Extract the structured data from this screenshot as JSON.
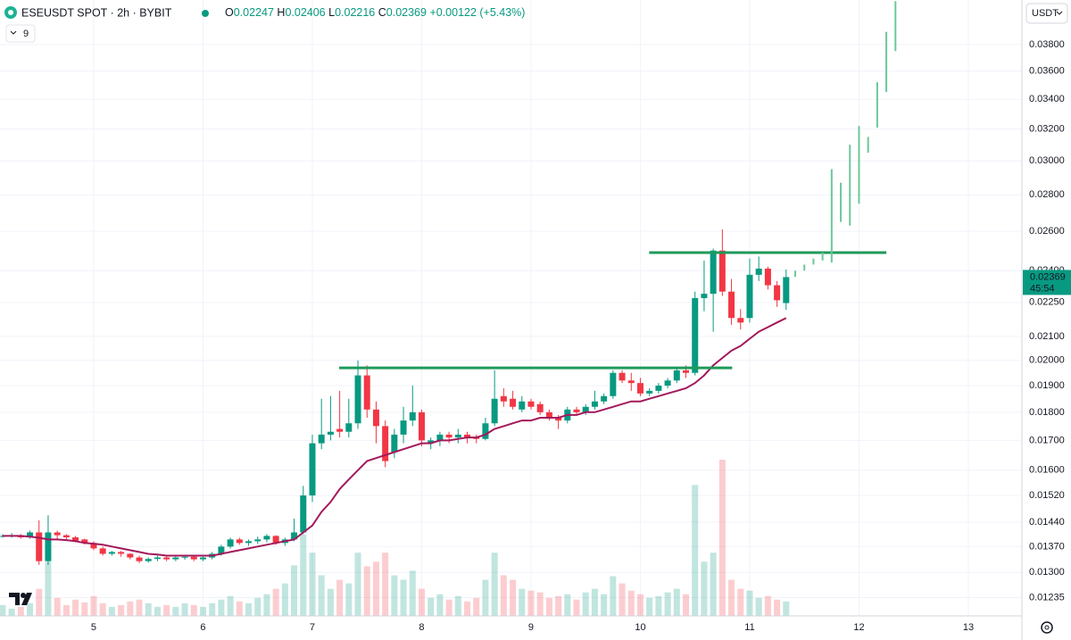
{
  "chart_data": {
    "type": "candlestick",
    "title": "ESEUSDT SPOT · 2h · BYBIT",
    "ohlc_letters": [
      "O",
      "H",
      "L",
      "C"
    ],
    "change": "+0.00122 (+5.43%)",
    "indicator": "9",
    "currency": "USDT",
    "countdown": "45:54",
    "log_scale": true,
    "grid": true,
    "up_color": "#089981",
    "down_color": "#f23645",
    "ma_color": "#a3195b",
    "level_color": "#1f9a5b",
    "projection_color": "#6cc79a",
    "xlim": [
      4.143,
      13.49
    ],
    "xticks": [
      5,
      6,
      7,
      8,
      9,
      10,
      11,
      12,
      13
    ],
    "ylim": [
      0.0119,
      0.0416
    ],
    "yticks": [
      {
        "value": 0.038,
        "label": "0.03800"
      },
      {
        "value": 0.036,
        "label": "0.03600"
      },
      {
        "value": 0.034,
        "label": "0.03400"
      },
      {
        "value": 0.032,
        "label": "0.03200"
      },
      {
        "value": 0.03,
        "label": "0.03000"
      },
      {
        "value": 0.028,
        "label": "0.02800"
      },
      {
        "value": 0.026,
        "label": "0.02600"
      },
      {
        "value": 0.024,
        "label": "0.02400"
      },
      {
        "value": 0.0225,
        "label": "0.02250"
      },
      {
        "value": 0.021,
        "label": "0.02100"
      },
      {
        "value": 0.02,
        "label": "0.02000"
      },
      {
        "value": 0.019,
        "label": "0.01900"
      },
      {
        "value": 0.018,
        "label": "0.01800"
      },
      {
        "value": 0.017,
        "label": "0.01700"
      },
      {
        "value": 0.016,
        "label": "0.01600"
      },
      {
        "value": 0.0152,
        "label": "0.01520"
      },
      {
        "value": 0.0144,
        "label": "0.01440"
      },
      {
        "value": 0.0137,
        "label": "0.01370"
      },
      {
        "value": 0.013,
        "label": "0.01300"
      },
      {
        "value": 0.01235,
        "label": "0.01235"
      }
    ],
    "x": [
      4.1667,
      4.25,
      4.3333,
      4.4167,
      4.5,
      4.5833,
      4.6667,
      4.75,
      4.8333,
      4.9167,
      5,
      5.0833,
      5.1667,
      5.25,
      5.3333,
      5.4167,
      5.5,
      5.5833,
      5.6667,
      5.75,
      5.8333,
      5.9167,
      6,
      6.0833,
      6.1667,
      6.25,
      6.3333,
      6.4167,
      6.5,
      6.5833,
      6.6667,
      6.75,
      6.8333,
      6.9167,
      7,
      7.0833,
      7.1667,
      7.25,
      7.3333,
      7.4167,
      7.5,
      7.5833,
      7.6667,
      7.75,
      7.8333,
      7.9167,
      8,
      8.0833,
      8.1667,
      8.25,
      8.3333,
      8.4167,
      8.5,
      8.5833,
      8.6667,
      8.75,
      8.8333,
      8.9167,
      9,
      9.0833,
      9.1667,
      9.25,
      9.3333,
      9.4167,
      9.5,
      9.5833,
      9.6667,
      9.75,
      9.8333,
      9.9167,
      10,
      10.0833,
      10.1667,
      10.25,
      10.3333,
      10.4167,
      10.5,
      10.5833,
      10.6667,
      10.75,
      10.8333,
      10.9167,
      11,
      11.0833,
      11.1667,
      11.25,
      11.3333
    ],
    "ohlc": [
      [
        0.014,
        0.01405,
        0.01395,
        0.014
      ],
      [
        0.014,
        0.01408,
        0.01395,
        0.01402
      ],
      [
        0.01402,
        0.01405,
        0.01392,
        0.01396
      ],
      [
        0.01396,
        0.01415,
        0.01392,
        0.0141
      ],
      [
        0.0141,
        0.01445,
        0.0132,
        0.0133
      ],
      [
        0.0133,
        0.0146,
        0.0132,
        0.0141
      ],
      [
        0.0141,
        0.01415,
        0.0139,
        0.01402
      ],
      [
        0.01402,
        0.01405,
        0.0139,
        0.01396
      ],
      [
        0.01396,
        0.014,
        0.01382,
        0.01386
      ],
      [
        0.0139,
        0.01392,
        0.01376,
        0.0138
      ],
      [
        0.0138,
        0.01385,
        0.0136,
        0.01365
      ],
      [
        0.01365,
        0.0137,
        0.01345,
        0.0135
      ],
      [
        0.0135,
        0.01358,
        0.01345,
        0.01355
      ],
      [
        0.01355,
        0.01358,
        0.01342,
        0.0135
      ],
      [
        0.0135,
        0.01352,
        0.01335,
        0.0134
      ],
      [
        0.0134,
        0.01345,
        0.01325,
        0.0133
      ],
      [
        0.0133,
        0.0134,
        0.01326,
        0.01336
      ],
      [
        0.01336,
        0.01345,
        0.0133,
        0.0134
      ],
      [
        0.0134,
        0.01345,
        0.0133,
        0.01335
      ],
      [
        0.01335,
        0.01345,
        0.0133,
        0.0134
      ],
      [
        0.0134,
        0.01346,
        0.01334,
        0.01342
      ],
      [
        0.01342,
        0.01346,
        0.0133,
        0.01335
      ],
      [
        0.01335,
        0.01345,
        0.0133,
        0.0134
      ],
      [
        0.0134,
        0.01355,
        0.01335,
        0.0135
      ],
      [
        0.0135,
        0.01375,
        0.01345,
        0.0137
      ],
      [
        0.0137,
        0.01395,
        0.01365,
        0.0139
      ],
      [
        0.0139,
        0.01395,
        0.01375,
        0.0138
      ],
      [
        0.0138,
        0.0139,
        0.01372,
        0.01385
      ],
      [
        0.01385,
        0.01398,
        0.01378,
        0.0139
      ],
      [
        0.0139,
        0.01405,
        0.01382,
        0.014
      ],
      [
        0.014,
        0.01402,
        0.01375,
        0.0138
      ],
      [
        0.0138,
        0.01395,
        0.01372,
        0.0139
      ],
      [
        0.0139,
        0.0145,
        0.01385,
        0.0141
      ],
      [
        0.0141,
        0.0155,
        0.01405,
        0.0152
      ],
      [
        0.0152,
        0.0172,
        0.015,
        0.0169
      ],
      [
        0.0169,
        0.0185,
        0.0167,
        0.0172
      ],
      [
        0.0172,
        0.0186,
        0.017,
        0.0173
      ],
      [
        0.0174,
        0.0188,
        0.0171,
        0.0173
      ],
      [
        0.0173,
        0.0185,
        0.0171,
        0.0176
      ],
      [
        0.0176,
        0.02,
        0.0174,
        0.0194
      ],
      [
        0.0194,
        0.0198,
        0.0178,
        0.0181
      ],
      [
        0.0181,
        0.0184,
        0.0169,
        0.0175
      ],
      [
        0.0175,
        0.0177,
        0.0161,
        0.0163
      ],
      [
        0.0166,
        0.0174,
        0.0164,
        0.0172
      ],
      [
        0.0172,
        0.0182,
        0.0169,
        0.0177
      ],
      [
        0.0177,
        0.019,
        0.0175,
        0.018
      ],
      [
        0.018,
        0.0181,
        0.0168,
        0.017
      ],
      [
        0.0169,
        0.0171,
        0.0167,
        0.017
      ],
      [
        0.017,
        0.0173,
        0.0168,
        0.0172
      ],
      [
        0.0172,
        0.0173,
        0.0169,
        0.0171
      ],
      [
        0.0171,
        0.0174,
        0.0169,
        0.0172
      ],
      [
        0.0172,
        0.0173,
        0.0169,
        0.0171
      ],
      [
        0.0171,
        0.0172,
        0.0169,
        0.01705
      ],
      [
        0.01705,
        0.0178,
        0.017,
        0.0176
      ],
      [
        0.0176,
        0.0196,
        0.0175,
        0.0185
      ],
      [
        0.0186,
        0.0189,
        0.0182,
        0.0184
      ],
      [
        0.0185,
        0.0188,
        0.0181,
        0.0182
      ],
      [
        0.0181,
        0.0186,
        0.018,
        0.0184
      ],
      [
        0.0184,
        0.0185,
        0.0181,
        0.0182
      ],
      [
        0.0183,
        0.0184,
        0.0179,
        0.018
      ],
      [
        0.018,
        0.0181,
        0.0177,
        0.0178
      ],
      [
        0.0178,
        0.0179,
        0.0174,
        0.0177
      ],
      [
        0.0177,
        0.0182,
        0.0176,
        0.0181
      ],
      [
        0.0181,
        0.0182,
        0.0179,
        0.018
      ],
      [
        0.018,
        0.0183,
        0.0179,
        0.0182
      ],
      [
        0.0182,
        0.0188,
        0.0181,
        0.0184
      ],
      [
        0.0184,
        0.0187,
        0.0183,
        0.0186
      ],
      [
        0.0186,
        0.0196,
        0.0185,
        0.0195
      ],
      [
        0.0195,
        0.0196,
        0.0191,
        0.0192
      ],
      [
        0.0192,
        0.0195,
        0.0188,
        0.0191
      ],
      [
        0.0191,
        0.0193,
        0.0186,
        0.0187
      ],
      [
        0.0187,
        0.0189,
        0.0186,
        0.0188
      ],
      [
        0.0188,
        0.0191,
        0.0187,
        0.019
      ],
      [
        0.019,
        0.0193,
        0.0189,
        0.0192
      ],
      [
        0.0192,
        0.0197,
        0.0191,
        0.0196
      ],
      [
        0.0196,
        0.0198,
        0.0193,
        0.0195
      ],
      [
        0.0195,
        0.023,
        0.0194,
        0.0227
      ],
      [
        0.0227,
        0.0245,
        0.0221,
        0.0229
      ],
      [
        0.0229,
        0.0251,
        0.0212,
        0.025
      ],
      [
        0.025,
        0.0261,
        0.0228,
        0.023
      ],
      [
        0.023,
        0.0236,
        0.0215,
        0.0218
      ],
      [
        0.0218,
        0.0222,
        0.0213,
        0.0216
      ],
      [
        0.0218,
        0.0246,
        0.0216,
        0.0238
      ],
      [
        0.0238,
        0.0247,
        0.0235,
        0.0241
      ],
      [
        0.0241,
        0.0242,
        0.0231,
        0.0233
      ],
      [
        0.0233,
        0.0235,
        0.0223,
        0.0226
      ],
      [
        0.02247,
        0.02406,
        0.02216,
        0.02369
      ]
    ],
    "ma": [
      0.014,
      0.014,
      0.014,
      0.01398,
      0.01395,
      0.0139,
      0.0139,
      0.01388,
      0.01385,
      0.0138,
      0.01378,
      0.01375,
      0.0137,
      0.01365,
      0.0136,
      0.01355,
      0.0135,
      0.01348,
      0.01345,
      0.01345,
      0.01345,
      0.01345,
      0.01345,
      0.01345,
      0.0135,
      0.01355,
      0.0136,
      0.01365,
      0.0137,
      0.01375,
      0.0138,
      0.01385,
      0.0139,
      0.0141,
      0.0143,
      0.0147,
      0.015,
      0.0154,
      0.0157,
      0.016,
      0.0163,
      0.0164,
      0.0165,
      0.0166,
      0.0167,
      0.0168,
      0.0169,
      0.0169,
      0.017,
      0.017,
      0.01705,
      0.0171,
      0.0171,
      0.0172,
      0.0174,
      0.0175,
      0.0176,
      0.0177,
      0.0177,
      0.0178,
      0.0178,
      0.0178,
      0.0179,
      0.0179,
      0.018,
      0.018,
      0.0181,
      0.0182,
      0.0183,
      0.0184,
      0.0184,
      0.0185,
      0.0186,
      0.0187,
      0.0188,
      0.0189,
      0.0191,
      0.0194,
      0.0198,
      0.0201,
      0.0204,
      0.0206,
      0.0209,
      0.0212,
      0.0214,
      0.0216,
      0.0218
    ],
    "volume": [
      12,
      8,
      10,
      14,
      30,
      60,
      20,
      12,
      18,
      15,
      22,
      14,
      10,
      12,
      16,
      18,
      14,
      10,
      12,
      10,
      14,
      12,
      10,
      14,
      18,
      22,
      16,
      14,
      20,
      24,
      30,
      36,
      56,
      90,
      70,
      45,
      30,
      40,
      36,
      70,
      55,
      60,
      70,
      45,
      40,
      50,
      30,
      20,
      24,
      18,
      22,
      16,
      20,
      40,
      70,
      45,
      40,
      30,
      28,
      26,
      20,
      22,
      24,
      18,
      26,
      30,
      24,
      44,
      36,
      28,
      24,
      20,
      22,
      26,
      30,
      24,
      145,
      60,
      70,
      173,
      40,
      30,
      28,
      20,
      22,
      18,
      16
    ],
    "levels": [
      {
        "value": 0.0197,
        "x": [
          7.245,
          10.84
        ]
      },
      {
        "value": 0.0249,
        "x": [
          10.08,
          12.25
        ]
      }
    ],
    "projection": {
      "x": [
        11.4167,
        11.5,
        11.5833,
        11.6667,
        11.75,
        11.8333,
        11.9167,
        12,
        12.0833,
        12.1667,
        12.25,
        12.3333
      ],
      "ranges": [
        [
          0.0237,
          0.024
        ],
        [
          0.024,
          0.0243
        ],
        [
          0.0243,
          0.0246
        ],
        [
          0.0245,
          0.0249
        ],
        [
          0.0244,
          0.0295
        ],
        [
          0.0265,
          0.0287
        ],
        [
          0.0263,
          0.031
        ],
        [
          0.0275,
          0.0322
        ],
        [
          0.0305,
          0.0315
        ],
        [
          0.0321,
          0.0352
        ],
        [
          0.0345,
          0.039
        ],
        [
          0.0375,
          0.0415
        ]
      ]
    }
  }
}
